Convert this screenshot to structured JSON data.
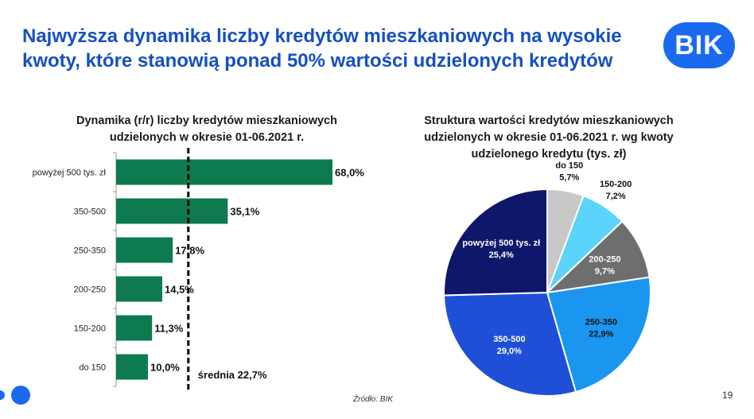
{
  "header": {
    "title": "Najwyższa dynamika liczby kredytów mieszkaniowych na wysokie kwoty, które stanowią ponad 50% wartości udzielonych kredytów",
    "logo_text": "BIK",
    "logo_color": "#1a6af0"
  },
  "footer": {
    "source": "Źródło: BIK",
    "page_number": "19"
  },
  "chart_data": [
    {
      "type": "bar",
      "orientation": "horizontal",
      "title": "Dynamika (r/r) liczby kredytów mieszkaniowych udzielonych w okresie 01-06.2021 r.",
      "categories": [
        "powyżej 500 tys. zł",
        "350-500",
        "250-350",
        "200-250",
        "150-200",
        "do 150"
      ],
      "values": [
        68.0,
        35.1,
        17.8,
        14.5,
        11.3,
        10.0
      ],
      "value_labels": [
        "68,0%",
        "35,1%",
        "17,8%",
        "14,5%",
        "11,3%",
        "10,0%"
      ],
      "unit": "%",
      "xlim": [
        0,
        70
      ],
      "color": "#0e7a50",
      "reference_line": {
        "value": 22.7,
        "label": "średnia 22,7%",
        "style": "dashed"
      },
      "grid": false
    },
    {
      "type": "pie",
      "title": "Struktura wartości kredytów mieszkaniowych udzielonych w okresie 01-06.2021 r. wg kwoty udzielonego kredytu (tys. zł)",
      "slices": [
        {
          "label": "do 150",
          "value": 5.7,
          "value_label": "5,7%",
          "color": "#c8c8c8"
        },
        {
          "label": "150-200",
          "value": 7.2,
          "value_label": "7,2%",
          "color": "#5ad4fa"
        },
        {
          "label": "200-250",
          "value": 9.7,
          "value_label": "9,7%",
          "color": "#6e6e6e"
        },
        {
          "label": "250-350",
          "value": 22.9,
          "value_label": "22,9%",
          "color": "#1a96f0"
        },
        {
          "label": "350-500",
          "value": 29.0,
          "value_label": "29,0%",
          "color": "#1f4fd6"
        },
        {
          "label": "powyżej 500 tys. zł",
          "value": 25.4,
          "value_label": "25,4%",
          "color": "#0f176a"
        }
      ]
    }
  ]
}
